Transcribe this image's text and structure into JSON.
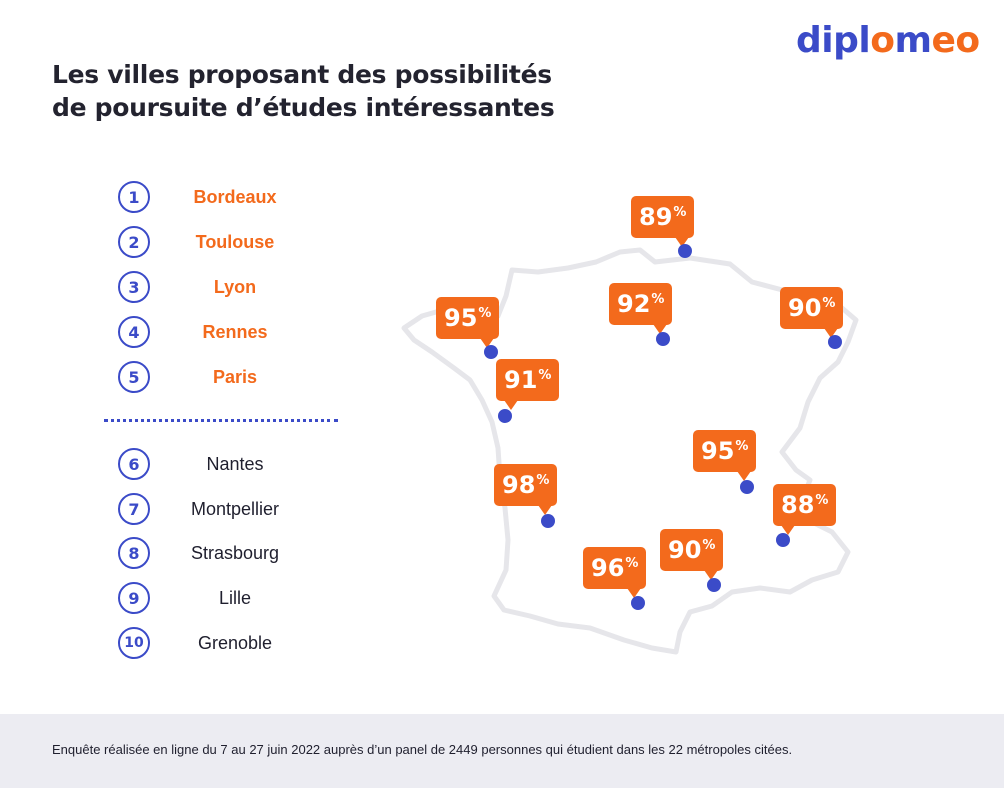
{
  "brand": {
    "logo_text_a": "dipl",
    "logo_text_b": "o",
    "logo_text_c": "m",
    "logo_text_d": "e",
    "logo_text_e": "o",
    "accent": "#f36a1c",
    "primary": "#3b4bc8"
  },
  "title": {
    "line1": "Les villes proposant des possibilités",
    "line2": "de poursuite d’études intéressantes"
  },
  "ranking": [
    {
      "rank": "1",
      "city": "Bordeaux",
      "highlight": true
    },
    {
      "rank": "2",
      "city": "Toulouse",
      "highlight": true
    },
    {
      "rank": "3",
      "city": "Lyon",
      "highlight": true
    },
    {
      "rank": "4",
      "city": "Rennes",
      "highlight": true
    },
    {
      "rank": "5",
      "city": "Paris",
      "highlight": true
    },
    {
      "rank": "6",
      "city": "Nantes",
      "highlight": false
    },
    {
      "rank": "7",
      "city": "Montpellier",
      "highlight": false
    },
    {
      "rank": "8",
      "city": "Strasbourg",
      "highlight": false
    },
    {
      "rank": "9",
      "city": "Lille",
      "highlight": false
    },
    {
      "rank": "10",
      "city": "Grenoble",
      "highlight": false
    }
  ],
  "map_markers": [
    {
      "value": "89",
      "unit": "%"
    },
    {
      "value": "92",
      "unit": "%"
    },
    {
      "value": "90",
      "unit": "%"
    },
    {
      "value": "95",
      "unit": "%"
    },
    {
      "value": "91",
      "unit": "%"
    },
    {
      "value": "95",
      "unit": "%"
    },
    {
      "value": "98",
      "unit": "%"
    },
    {
      "value": "88",
      "unit": "%"
    },
    {
      "value": "90",
      "unit": "%"
    },
    {
      "value": "96",
      "unit": "%"
    }
  ],
  "footer": {
    "note": "Enquête réalisée en ligne du 7 au 27 juin 2022 auprès d’un panel de 2449 personnes qui étudient dans les 22 métropoles citées."
  }
}
